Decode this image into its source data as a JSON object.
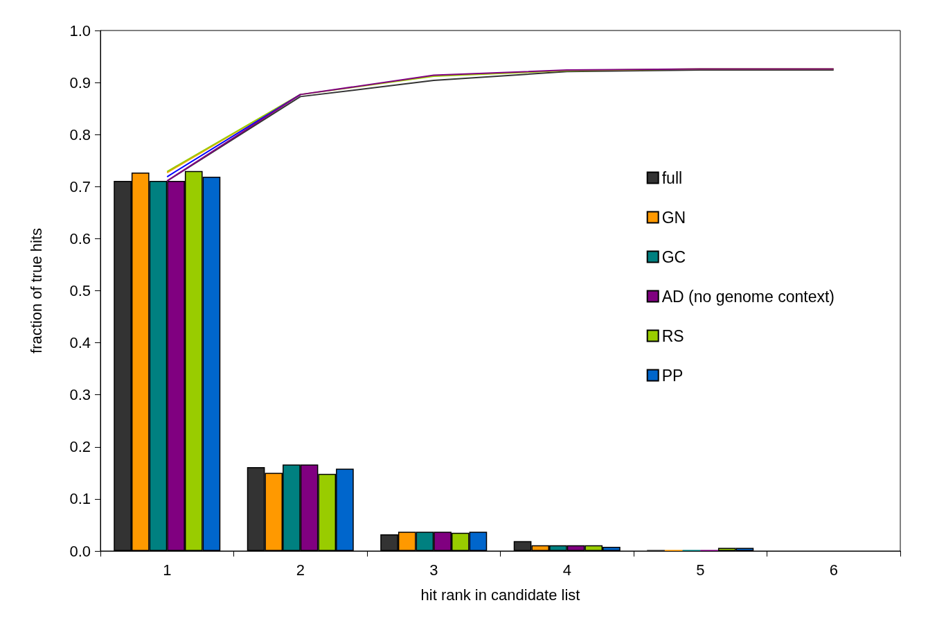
{
  "chart_data": {
    "type": "bar",
    "xlabel": "hit rank in candidate list",
    "ylabel": "fraction of true hits",
    "categories": [
      "1",
      "2",
      "3",
      "4",
      "5",
      "6"
    ],
    "series": [
      {
        "name": "full",
        "color": "#333333",
        "values": [
          0.711,
          0.161,
          0.032,
          0.019,
          0.002,
          0
        ]
      },
      {
        "name": "GN",
        "color": "#ff9900",
        "values": [
          0.727,
          0.15,
          0.037,
          0.011,
          0.002,
          0
        ]
      },
      {
        "name": "GC",
        "color": "#008080",
        "values": [
          0.711,
          0.166,
          0.037,
          0.011,
          0.002,
          0
        ]
      },
      {
        "name": "AD (no genome context)",
        "color": "#800080",
        "values": [
          0.711,
          0.166,
          0.037,
          0.011,
          0.002,
          0
        ]
      },
      {
        "name": "RS",
        "color": "#99cc00",
        "values": [
          0.73,
          0.148,
          0.035,
          0.011,
          0.006,
          0
        ]
      },
      {
        "name": "PP",
        "color": "#0066cc",
        "values": [
          0.719,
          0.158,
          0.037,
          0.008,
          0.006,
          0
        ]
      },
      {
        "type": "line",
        "color": "#333333",
        "values": [
          0.711,
          0.873,
          0.904,
          0.921,
          0.924,
          0.924
        ]
      },
      {
        "type": "line",
        "color": "#ff9900",
        "values": [
          0.727,
          0.877,
          null,
          null,
          null,
          null
        ]
      },
      {
        "type": "line",
        "color": "#99cc00",
        "values": [
          0.729,
          0.877,
          0.912,
          0.923,
          0.926,
          0.926
        ]
      },
      {
        "type": "line",
        "color": "#0000ff",
        "values": [
          0.719,
          0.877,
          null,
          null,
          null,
          null
        ]
      },
      {
        "type": "line",
        "color": "#800080",
        "values": [
          0.711,
          0.877,
          0.914,
          0.924,
          0.926,
          0.926
        ]
      }
    ],
    "ylim": [
      0,
      1
    ],
    "yticks": [
      {
        "value": 0,
        "label": "0.0"
      },
      0.1,
      0.2,
      0.3,
      0.4,
      0.5,
      0.6,
      0.7,
      0.8,
      0.9,
      {
        "value": 1,
        "label": "1.0"
      }
    ],
    "grid": false,
    "legend": "right",
    "marker": "none"
  }
}
